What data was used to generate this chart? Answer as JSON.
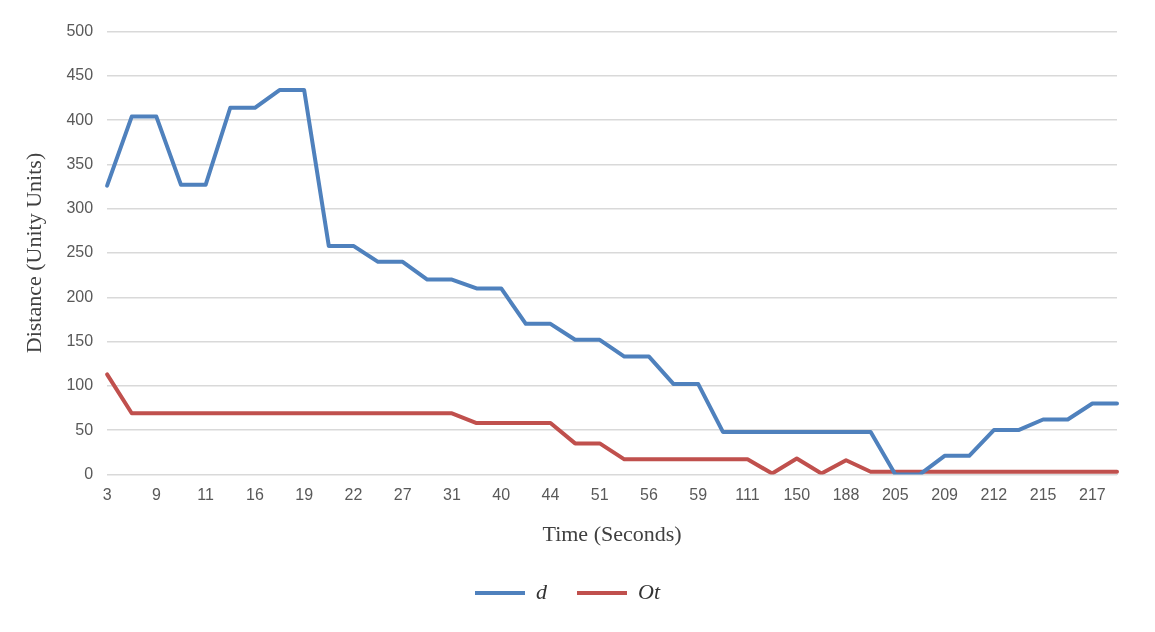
{
  "chart_data": {
    "type": "line",
    "xlabel": "Time (Seconds)",
    "ylabel": "Distance (Unity Units)",
    "categories": [
      "3",
      null,
      "9",
      null,
      "11",
      null,
      "16",
      null,
      "19",
      null,
      "22",
      null,
      "27",
      null,
      "31",
      null,
      "40",
      null,
      "44",
      null,
      "51",
      null,
      "56",
      null,
      "59",
      null,
      "111",
      null,
      "150",
      null,
      "188",
      null,
      "205",
      null,
      "209",
      null,
      "212",
      null,
      "215",
      null,
      "217",
      null
    ],
    "series": [
      {
        "name": "d",
        "color": "#4f81bd",
        "values": [
          326,
          404,
          404,
          327,
          327,
          414,
          414,
          434,
          434,
          258,
          258,
          240,
          240,
          220,
          220,
          210,
          210,
          170,
          170,
          152,
          152,
          133,
          133,
          102,
          102,
          48,
          48,
          48,
          48,
          48,
          48,
          48,
          0,
          0,
          21,
          21,
          50,
          50,
          62,
          62,
          80,
          80
        ]
      },
      {
        "name": "Ot",
        "color": "#c0504d",
        "values": [
          113,
          69,
          69,
          69,
          69,
          69,
          69,
          69,
          69,
          69,
          69,
          69,
          69,
          69,
          69,
          58,
          58,
          58,
          58,
          35,
          35,
          17,
          17,
          17,
          17,
          17,
          17,
          1,
          18,
          1,
          16,
          3,
          3,
          3,
          3,
          3,
          3,
          3,
          3,
          3,
          3,
          3
        ]
      }
    ],
    "ylim": [
      0,
      500
    ],
    "yticks": [
      0,
      50,
      100,
      150,
      200,
      250,
      300,
      350,
      400,
      450,
      500
    ],
    "grid": "y",
    "legend": "bottom",
    "marker": "none",
    "line_style": "solid"
  }
}
